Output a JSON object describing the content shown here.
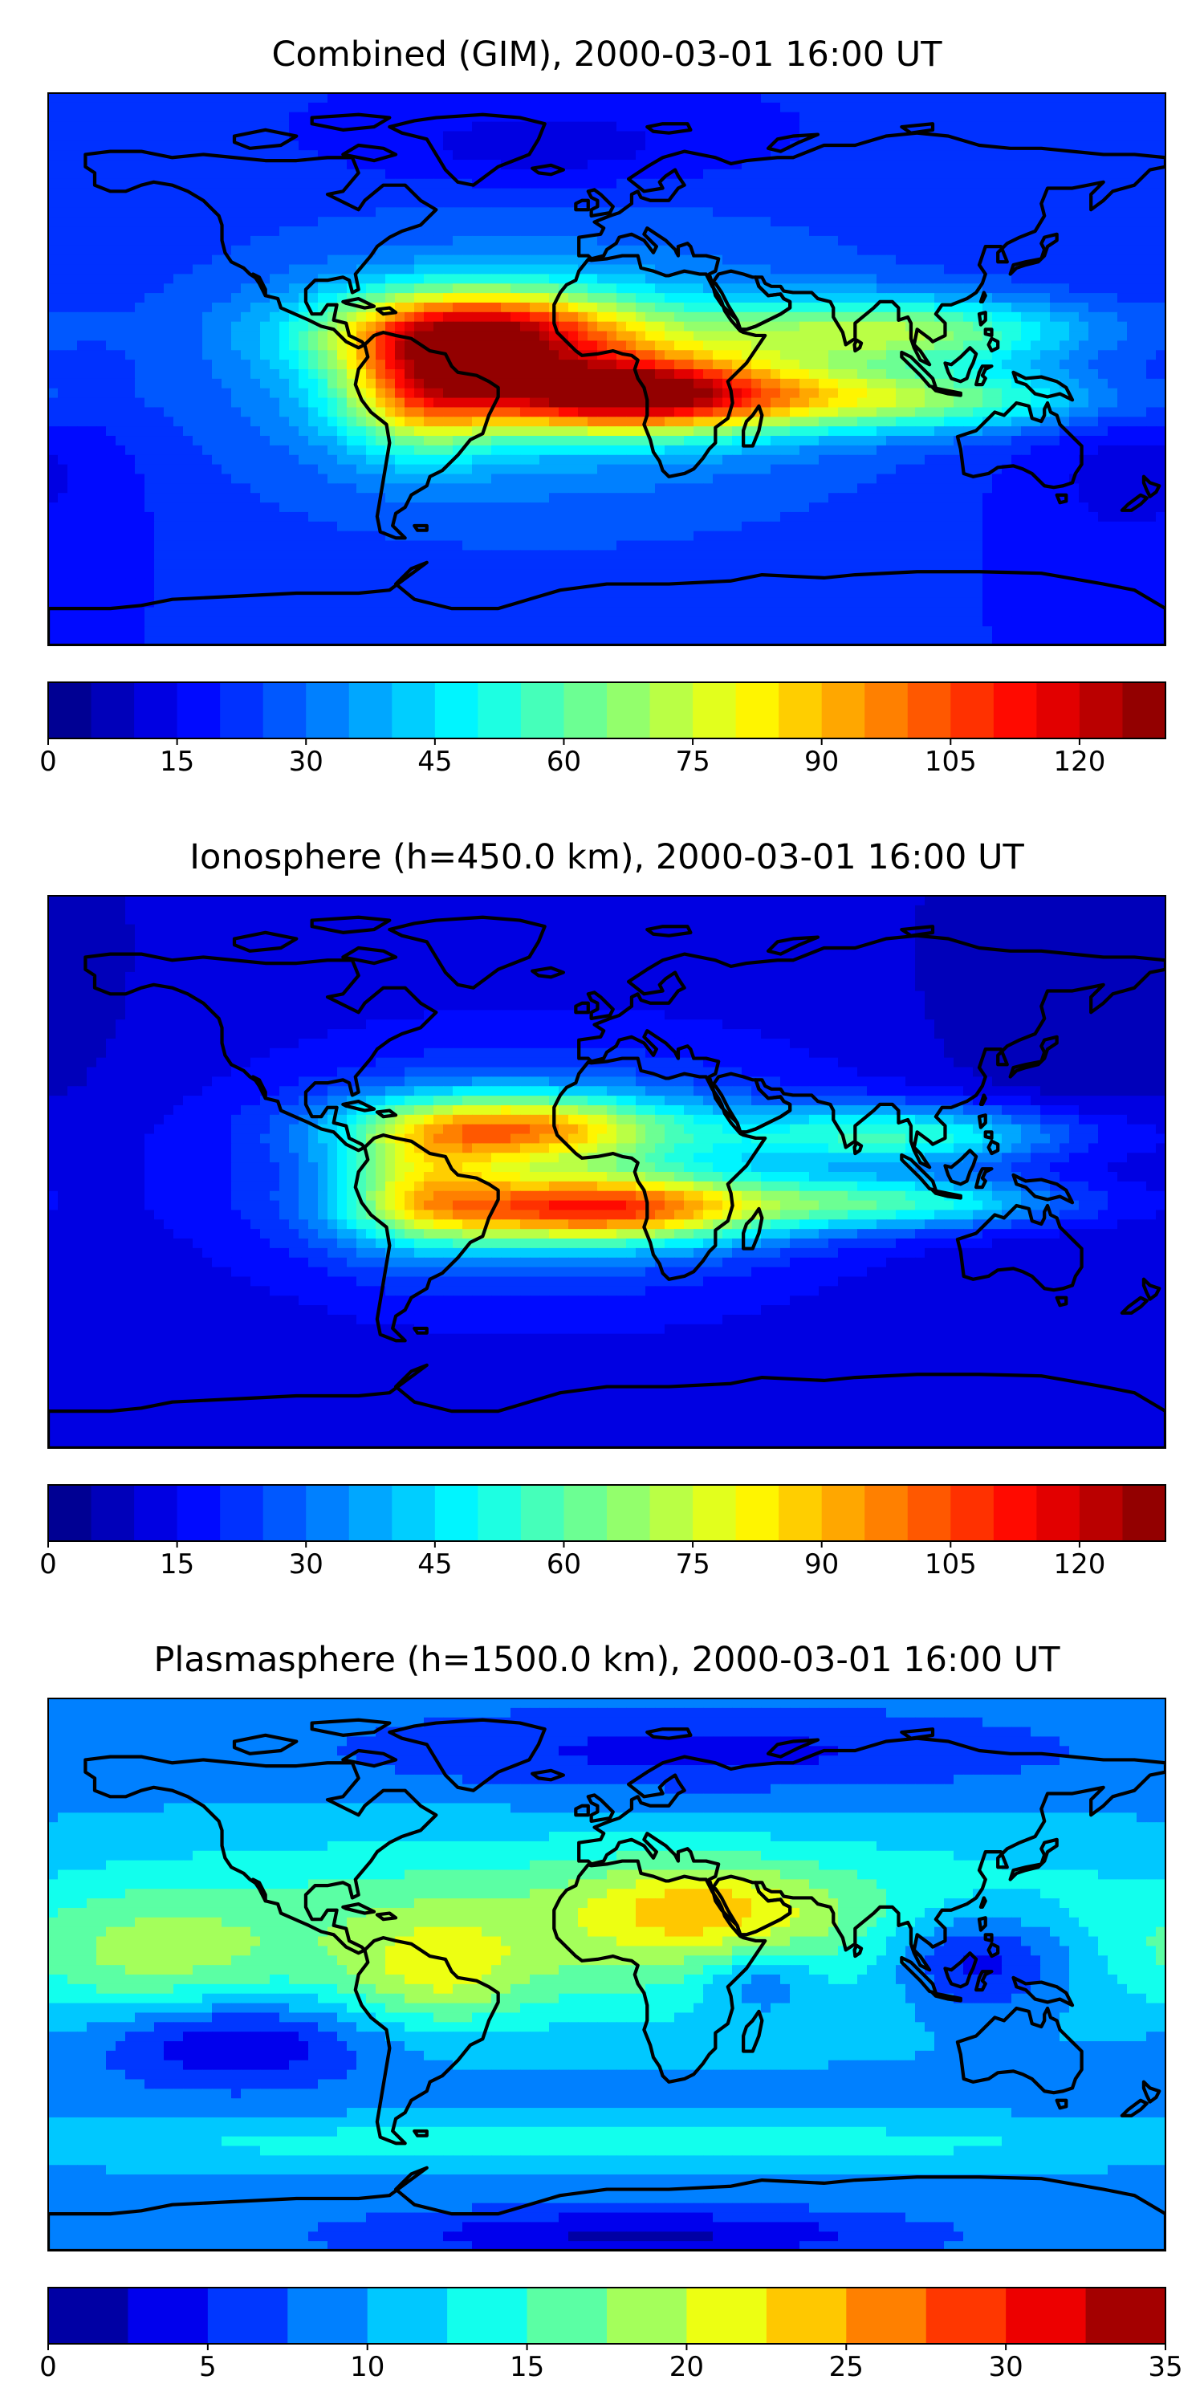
{
  "panels": [
    {
      "id": "combined",
      "title": "Combined (GIM), 2000-03-01 16:00 UT",
      "colormap": "jet",
      "colorbar": {
        "min": 0,
        "max": 130,
        "levels": 26,
        "ticks": [
          0,
          15,
          30,
          45,
          60,
          75,
          90,
          105,
          120
        ],
        "tick_labels": [
          "0",
          "15",
          "30",
          "45",
          "60",
          "75",
          "90",
          "105",
          "120"
        ]
      },
      "field": {
        "base": 20,
        "blobs": [
          {
            "lon": -40,
            "lat": 12,
            "slon": 35,
            "slat": 10,
            "amp": 85
          },
          {
            "lon": 5,
            "lat": -8,
            "slon": 40,
            "slat": 9,
            "amp": 95
          },
          {
            "lon": -60,
            "lat": -8,
            "slon": 18,
            "slat": 14,
            "amp": 45
          },
          {
            "lon": 90,
            "lat": 12,
            "slon": 45,
            "slat": 8,
            "amp": 45
          },
          {
            "lon": 100,
            "lat": -10,
            "slon": 45,
            "slat": 7,
            "amp": 40
          },
          {
            "lon": -20,
            "lat": 0,
            "slon": 80,
            "slat": 35,
            "amp": 20
          },
          {
            "lon": -20,
            "lat": 72,
            "slon": 40,
            "slat": 10,
            "amp": -10
          },
          {
            "lon": 170,
            "lat": -30,
            "slon": 30,
            "slat": 25,
            "amp": -8
          }
        ]
      }
    },
    {
      "id": "ionosphere",
      "title": "Ionosphere  (h=450.0 km), 2000-03-01 16:00 UT",
      "colormap": "jet",
      "colorbar": {
        "min": 0,
        "max": 130,
        "levels": 26,
        "ticks": [
          0,
          15,
          30,
          45,
          60,
          75,
          90,
          105,
          120
        ],
        "tick_labels": [
          "0",
          "15",
          "30",
          "45",
          "60",
          "75",
          "90",
          "105",
          "120"
        ]
      },
      "field": {
        "base": 10,
        "blobs": [
          {
            "lon": -30,
            "lat": 14,
            "slon": 35,
            "slat": 8,
            "amp": 65
          },
          {
            "lon": -5,
            "lat": -12,
            "slon": 40,
            "slat": 8,
            "amp": 78
          },
          {
            "lon": -60,
            "lat": -5,
            "slon": 18,
            "slat": 14,
            "amp": 35
          },
          {
            "lon": 95,
            "lat": 12,
            "slon": 40,
            "slat": 7,
            "amp": 40
          },
          {
            "lon": 95,
            "lat": -10,
            "slon": 40,
            "slat": 6,
            "amp": 38
          },
          {
            "lon": -20,
            "lat": 0,
            "slon": 70,
            "slat": 30,
            "amp": 25
          },
          {
            "lon": 150,
            "lat": 40,
            "slon": 30,
            "slat": 20,
            "amp": -5
          }
        ]
      }
    },
    {
      "id": "plasmasphere",
      "title": "Plasmasphere (h=1500.0 km), 2000-03-01 16:00 UT",
      "colormap": "jet",
      "colorbar": {
        "min": 0,
        "max": 35,
        "levels": 14,
        "ticks": [
          0,
          5,
          10,
          15,
          20,
          25,
          30,
          35
        ],
        "tick_labels": [
          "0",
          "5",
          "10",
          "15",
          "20",
          "25",
          "30",
          "35"
        ]
      },
      "field": {
        "base": 9,
        "blobs": [
          {
            "lon": 0,
            "lat": 15,
            "slon": 140,
            "slat": 22,
            "amp": 9
          },
          {
            "lon": 30,
            "lat": 22,
            "slon": 25,
            "slat": 10,
            "amp": 7
          },
          {
            "lon": -55,
            "lat": 0,
            "slon": 20,
            "slat": 12,
            "amp": 6
          },
          {
            "lon": -150,
            "lat": 5,
            "slon": 30,
            "slat": 15,
            "amp": 5
          },
          {
            "lon": 0,
            "lat": -55,
            "slon": 150,
            "slat": 6,
            "amp": 5
          },
          {
            "lon": 120,
            "lat": 5,
            "slon": 22,
            "slat": 12,
            "amp": -10
          },
          {
            "lon": 50,
            "lat": -2,
            "slon": 14,
            "slat": 8,
            "amp": -6
          },
          {
            "lon": -120,
            "lat": -22,
            "slon": 30,
            "slat": 10,
            "amp": -8
          },
          {
            "lon": 10,
            "lat": -85,
            "slon": 60,
            "slat": 6,
            "amp": -7
          },
          {
            "lon": 30,
            "lat": 72,
            "slon": 80,
            "slat": 10,
            "amp": -5
          }
        ]
      }
    }
  ]
}
